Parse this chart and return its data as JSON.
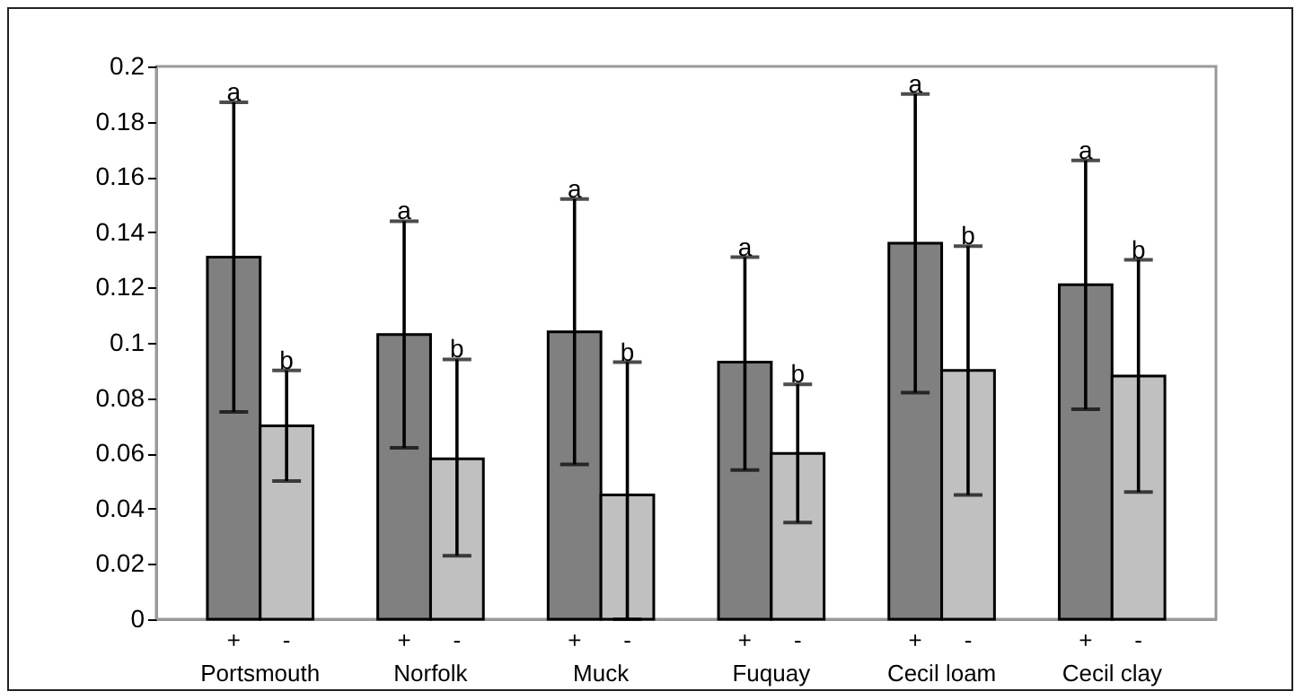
{
  "chart_data": {
    "type": "bar",
    "categories": [
      "Portsmouth",
      "Norfolk",
      "Muck",
      "Fuquay",
      "Cecil loam",
      "Cecil clay"
    ],
    "series": [
      {
        "name": "+",
        "color": "#808080",
        "values": [
          0.131,
          0.103,
          0.104,
          0.093,
          0.136,
          0.121
        ],
        "errors": [
          [
            0.075,
            0.187
          ],
          [
            0.062,
            0.144
          ],
          [
            0.056,
            0.152
          ],
          [
            0.054,
            0.131
          ],
          [
            0.082,
            0.19
          ],
          [
            0.076,
            0.166
          ]
        ]
      },
      {
        "name": "-",
        "color": "#c0c0c0",
        "values": [
          0.07,
          0.058,
          0.045,
          0.06,
          0.09,
          0.088
        ],
        "errors": [
          [
            0.05,
            0.09
          ],
          [
            0.023,
            0.094
          ],
          [
            0,
            0.093
          ],
          [
            0.035,
            0.085
          ],
          [
            0.045,
            0.135
          ],
          [
            0.046,
            0.13
          ]
        ]
      }
    ],
    "annotations": [
      "a",
      "b",
      "a",
      "b",
      "a",
      "b",
      "a",
      "b",
      "a",
      "b",
      "a",
      "b"
    ],
    "ylim": [
      0,
      0.2
    ],
    "yticks": [
      0,
      0.02,
      0.04,
      0.06,
      0.08,
      0.1,
      0.12,
      0.14,
      0.16,
      0.18,
      0.2
    ],
    "grid": false,
    "legend": false
  }
}
